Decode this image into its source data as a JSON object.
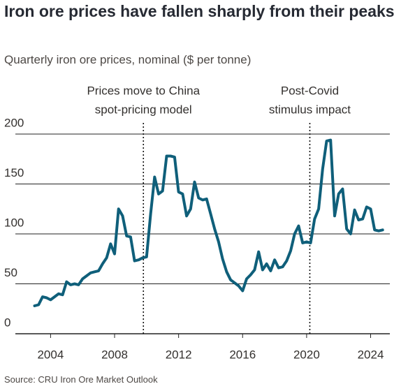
{
  "chart_data": {
    "type": "line",
    "title": "Iron ore prices have fallen sharply from their peaks",
    "subtitle": "Quarterly iron ore prices, nominal ($ per tonne)",
    "source": "Source: CRU Iron Ore Market Outlook",
    "x": [
      2003.0,
      2003.25,
      2003.5,
      2003.75,
      2004.0,
      2004.25,
      2004.5,
      2004.75,
      2005.0,
      2005.25,
      2005.5,
      2005.75,
      2006.0,
      2006.25,
      2006.5,
      2006.75,
      2007.0,
      2007.25,
      2007.5,
      2007.75,
      2008.0,
      2008.25,
      2008.5,
      2008.75,
      2009.0,
      2009.25,
      2009.5,
      2009.75,
      2010.0,
      2010.25,
      2010.5,
      2010.75,
      2011.0,
      2011.25,
      2011.5,
      2011.75,
      2012.0,
      2012.25,
      2012.5,
      2012.75,
      2013.0,
      2013.25,
      2013.5,
      2013.75,
      2014.0,
      2014.25,
      2014.5,
      2014.75,
      2015.0,
      2015.25,
      2015.5,
      2015.75,
      2016.0,
      2016.25,
      2016.5,
      2016.75,
      2017.0,
      2017.25,
      2017.5,
      2017.75,
      2018.0,
      2018.25,
      2018.5,
      2018.75,
      2019.0,
      2019.25,
      2019.5,
      2019.75,
      2020.0,
      2020.25,
      2020.5,
      2020.75,
      2021.0,
      2021.25,
      2021.5,
      2021.75,
      2022.0,
      2022.25,
      2022.5,
      2022.75,
      2023.0,
      2023.25,
      2023.5,
      2023.75,
      2024.0,
      2024.25,
      2024.5,
      2024.75
    ],
    "series": [
      {
        "name": "Iron ore price",
        "color": "#0f5f7a",
        "values": [
          28,
          29,
          37,
          36,
          34,
          37,
          40,
          39,
          52,
          49,
          50,
          49,
          55,
          58,
          61,
          62,
          63,
          70,
          76,
          90,
          80,
          125,
          118,
          98,
          97,
          73,
          74,
          76,
          77,
          120,
          157,
          140,
          143,
          178,
          178,
          177,
          142,
          140,
          118,
          125,
          152,
          136,
          134,
          135,
          120,
          105,
          92,
          75,
          62,
          54,
          51,
          48,
          43,
          55,
          59,
          64,
          82,
          64,
          70,
          63,
          74,
          66,
          67,
          73,
          83,
          100,
          108,
          91,
          92,
          91,
          115,
          125,
          165,
          193,
          194,
          118,
          140,
          145,
          105,
          100,
          124,
          114,
          115,
          127,
          125,
          104,
          103,
          104
        ]
      }
    ],
    "xlim": [
      2001.8,
      2025.2
    ],
    "xticks": [
      2004,
      2008,
      2012,
      2016,
      2020,
      2024
    ],
    "ylim": [
      0,
      200
    ],
    "yticks": [
      0,
      50,
      100,
      150,
      200
    ],
    "grid": true,
    "annotations": [
      {
        "x": 2009.8,
        "lines": [
          "Prices move to China",
          "spot-pricing model"
        ]
      },
      {
        "x": 2020.2,
        "lines": [
          "Post-Covid",
          "stimulus impact"
        ]
      }
    ]
  }
}
